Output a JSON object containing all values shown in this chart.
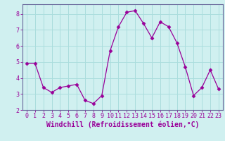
{
  "x": [
    0,
    1,
    2,
    3,
    4,
    5,
    6,
    7,
    8,
    9,
    10,
    11,
    12,
    13,
    14,
    15,
    16,
    17,
    18,
    19,
    20,
    21,
    22,
    23
  ],
  "y": [
    4.9,
    4.9,
    3.4,
    3.1,
    3.4,
    3.5,
    3.6,
    2.6,
    2.4,
    2.9,
    5.7,
    7.2,
    8.1,
    8.2,
    7.4,
    6.5,
    7.5,
    7.2,
    6.2,
    4.7,
    2.9,
    3.4,
    4.5,
    3.3
  ],
  "line_color": "#990099",
  "marker": "D",
  "marker_size": 2.5,
  "bg_color": "#d0f0f0",
  "grid_color": "#aadddd",
  "axis_color": "#990099",
  "spine_color": "#666699",
  "xlabel": "Windchill (Refroidissement éolien,°C)",
  "xlabel_fontsize": 7,
  "tick_fontsize": 6,
  "xlim": [
    -0.5,
    23.5
  ],
  "ylim": [
    2.0,
    8.6
  ],
  "yticks": [
    2,
    3,
    4,
    5,
    6,
    7,
    8
  ],
  "xticks": [
    0,
    1,
    2,
    3,
    4,
    5,
    6,
    7,
    8,
    9,
    10,
    11,
    12,
    13,
    14,
    15,
    16,
    17,
    18,
    19,
    20,
    21,
    22,
    23
  ]
}
